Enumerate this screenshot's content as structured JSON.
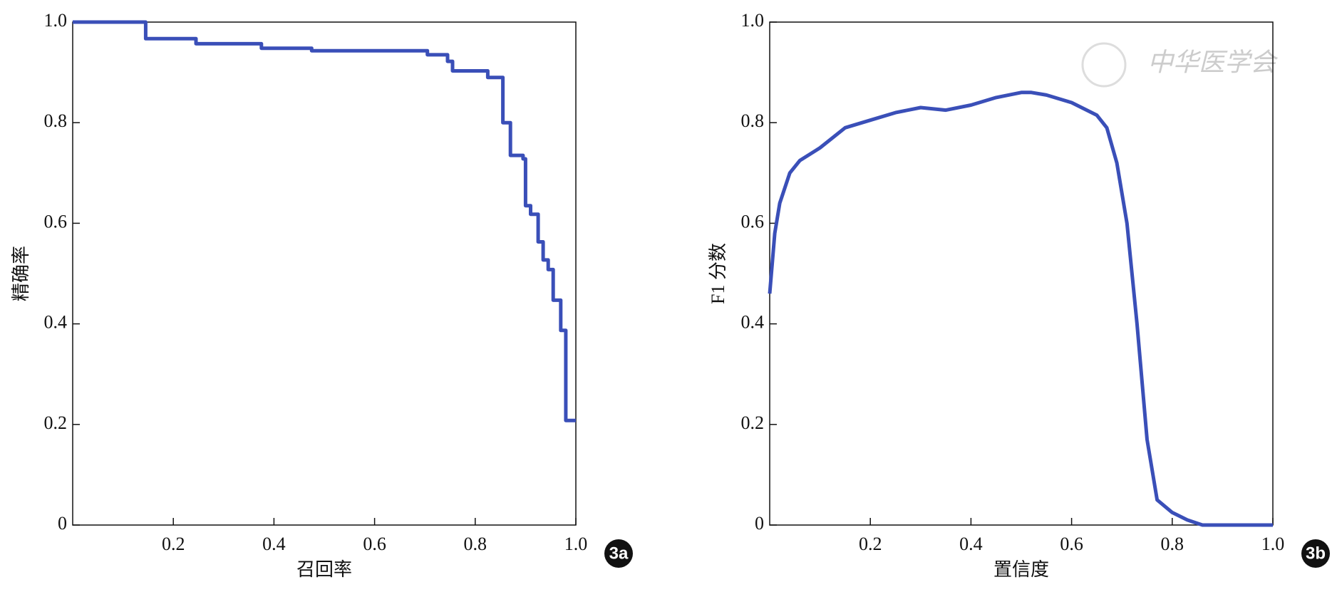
{
  "watermark": "中华医学会",
  "chart_data": [
    {
      "type": "line",
      "label": "3a",
      "x_label": "召回率",
      "y_label": "精确率",
      "xlim": [
        0,
        1
      ],
      "ylim": [
        0,
        1
      ],
      "xticks": [
        0.2,
        0.4,
        0.6,
        0.8,
        {
          "value": 1,
          "label": "1.0"
        }
      ],
      "yticks": [
        0,
        0.2,
        0.4,
        0.6,
        0.8,
        {
          "value": 1,
          "label": "1.0"
        }
      ],
      "grid": false,
      "x": [
        0,
        0.145,
        0.145,
        0.245,
        0.245,
        0.375,
        0.375,
        0.475,
        0.475,
        0.705,
        0.705,
        0.745,
        0.745,
        0.755,
        0.755,
        0.825,
        0.825,
        0.855,
        0.855,
        0.87,
        0.87,
        0.895,
        0.895,
        0.9,
        0.9,
        0.91,
        0.91,
        0.925,
        0.925,
        0.935,
        0.935,
        0.945,
        0.945,
        0.955,
        0.955,
        0.97,
        0.97,
        0.98,
        0.98,
        1.0
      ],
      "series": [
        {
          "color": "#3a4fb8",
          "values": [
            1,
            1,
            0.967,
            0.967,
            0.957,
            0.957,
            0.948,
            0.948,
            0.943,
            0.943,
            0.935,
            0.935,
            0.922,
            0.922,
            0.903,
            0.903,
            0.89,
            0.89,
            0.8,
            0.8,
            0.735,
            0.735,
            0.728,
            0.728,
            0.635,
            0.635,
            0.618,
            0.618,
            0.563,
            0.563,
            0.527,
            0.527,
            0.508,
            0.508,
            0.447,
            0.447,
            0.387,
            0.387,
            0.208,
            0.208
          ]
        }
      ]
    },
    {
      "type": "line",
      "label": "3b",
      "x_label": "置信度",
      "y_label": "F1 分数",
      "xlim": [
        0,
        1
      ],
      "ylim": [
        0,
        1
      ],
      "xticks": [
        0.2,
        0.4,
        0.6,
        0.8,
        {
          "value": 1,
          "label": "1.0"
        }
      ],
      "yticks": [
        0,
        0.2,
        0.4,
        0.6,
        0.8,
        {
          "value": 1,
          "label": "1.0"
        }
      ],
      "grid": false,
      "x": [
        0,
        0.01,
        0.02,
        0.04,
        0.06,
        0.1,
        0.15,
        0.2,
        0.25,
        0.3,
        0.35,
        0.4,
        0.45,
        0.5,
        0.52,
        0.55,
        0.6,
        0.65,
        0.67,
        0.69,
        0.71,
        0.73,
        0.75,
        0.77,
        0.8,
        0.83,
        0.86,
        1.0
      ],
      "series": [
        {
          "color": "#3a4fb8",
          "values": [
            0.46,
            0.58,
            0.64,
            0.7,
            0.725,
            0.75,
            0.79,
            0.805,
            0.82,
            0.83,
            0.825,
            0.835,
            0.85,
            0.86,
            0.86,
            0.855,
            0.84,
            0.815,
            0.79,
            0.72,
            0.6,
            0.4,
            0.17,
            0.05,
            0.025,
            0.01,
            0,
            0
          ]
        }
      ]
    }
  ]
}
